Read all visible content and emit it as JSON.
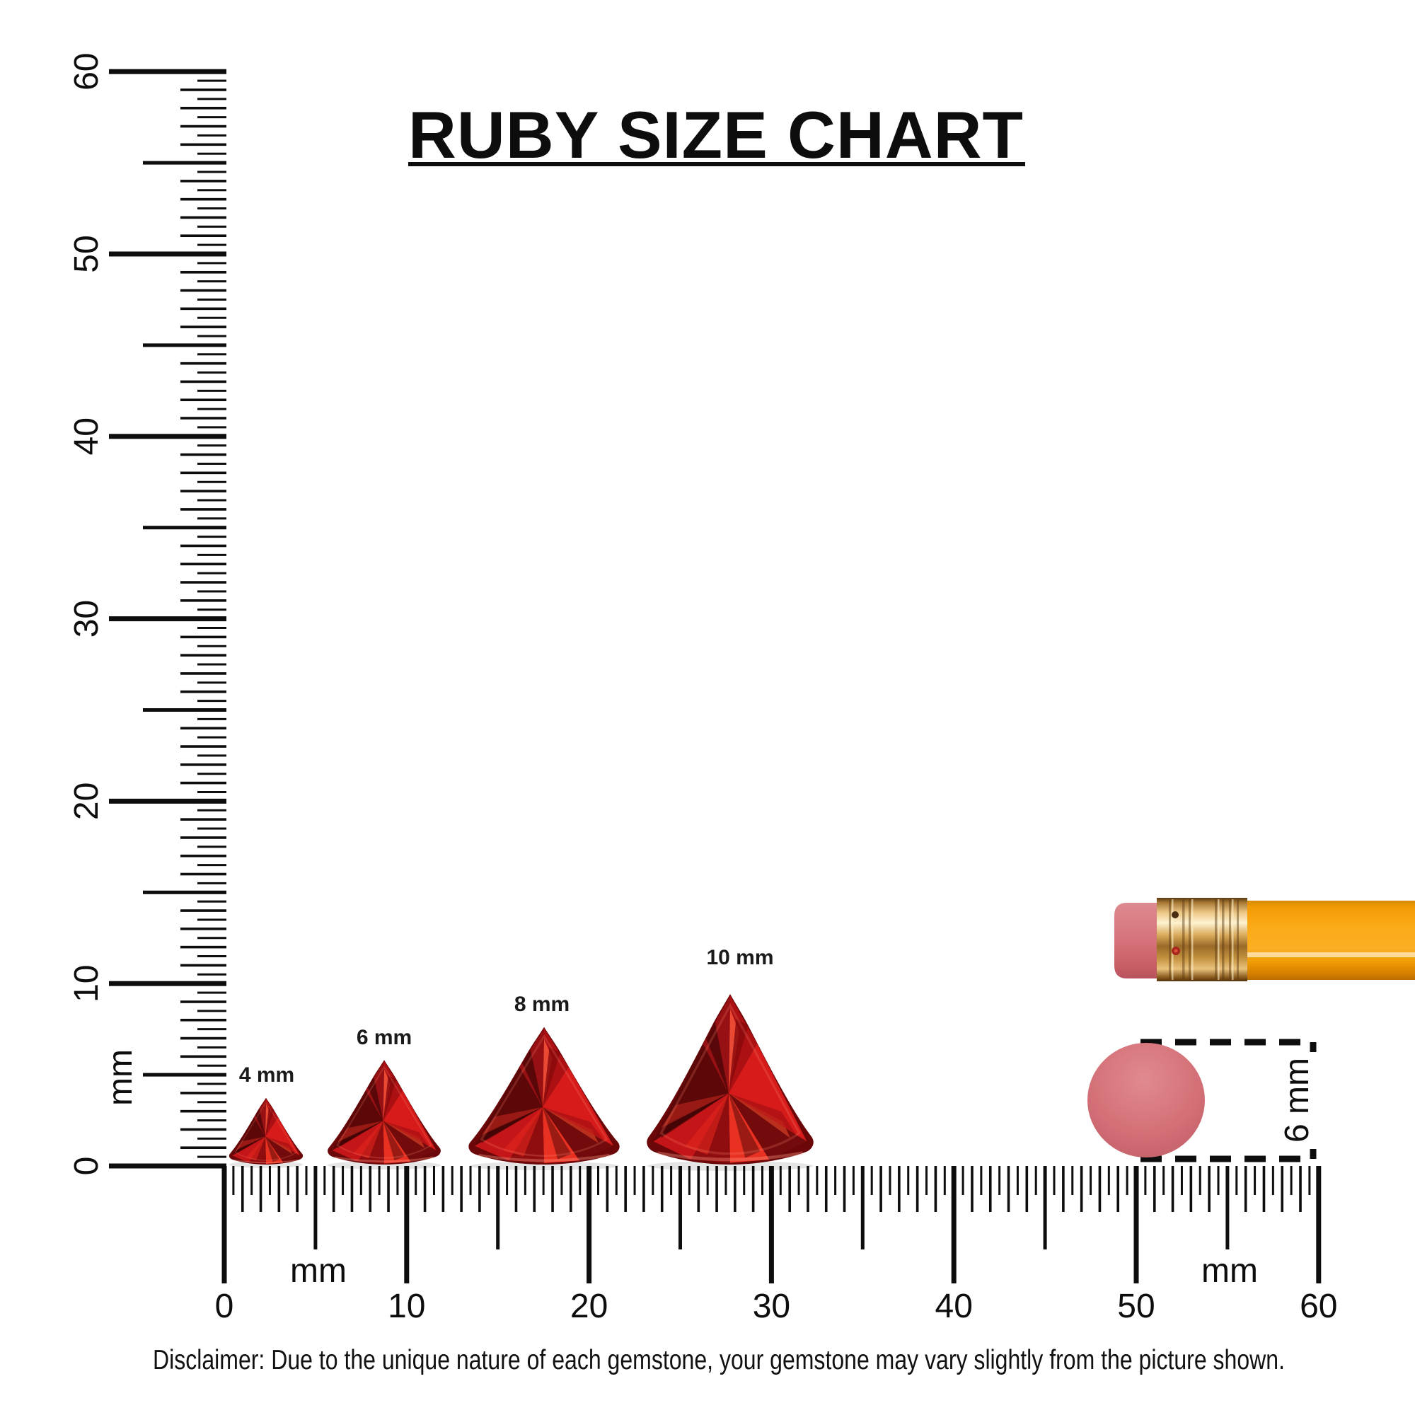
{
  "title": {
    "text": "RUBY SIZE CHART"
  },
  "rulers": {
    "vertical": {
      "unit_label": "mm",
      "major_labels": [
        "0",
        "10",
        "20",
        "30",
        "40",
        "50",
        "60"
      ],
      "min_mm": 0,
      "max_mm": 60,
      "step_mm": 0.5
    },
    "horizontal": {
      "unit_label": "mm",
      "unit_label_instances": 2,
      "major_labels": [
        "0",
        "10",
        "20",
        "30",
        "40",
        "50",
        "60"
      ],
      "min_mm": 0,
      "max_mm": 60,
      "step_mm": 0.5
    }
  },
  "gems": [
    {
      "id": "ruby-4mm",
      "label": "4 mm",
      "size_mm": 4,
      "cut": "trillion"
    },
    {
      "id": "ruby-6mm",
      "label": "6 mm",
      "size_mm": 6,
      "cut": "trillion"
    },
    {
      "id": "ruby-8mm",
      "label": "8 mm",
      "size_mm": 8,
      "cut": "trillion"
    },
    {
      "id": "ruby-10mm",
      "label": "10 mm",
      "size_mm": 10,
      "cut": "trillion"
    }
  ],
  "scale_reference": {
    "type": "pencil-eraser",
    "measure_label": "6 mm"
  },
  "disclaimer": "Disclaimer: Due to the unique nature of each gemstone, your gemstone may vary slightly from the picture shown.",
  "colors": {
    "ink": "#0d0d0d",
    "ruby_bright": "#d61b1a",
    "ruby_dark": "#730a0b",
    "pencil_body": "#f9a00c",
    "ferrule_gold": "#e8c27c",
    "eraser_pink": "#d4757c"
  }
}
